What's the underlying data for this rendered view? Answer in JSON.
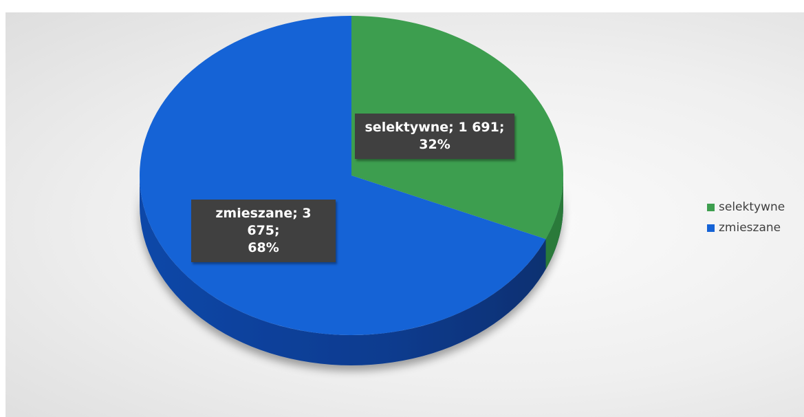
{
  "chart_data": {
    "type": "pie",
    "title": "",
    "style": "3d",
    "slices": [
      {
        "label": "selektywne",
        "value": 1691,
        "value_text": "1 691",
        "percent": "32%",
        "color": "#3d9e4f"
      },
      {
        "label": "zmieszane",
        "value": 3675,
        "value_text": "3 675",
        "percent": "68%",
        "color": "#1563d6"
      }
    ],
    "legend": {
      "position": "right",
      "entries": [
        "selektywne",
        "zmieszane"
      ]
    }
  }
}
